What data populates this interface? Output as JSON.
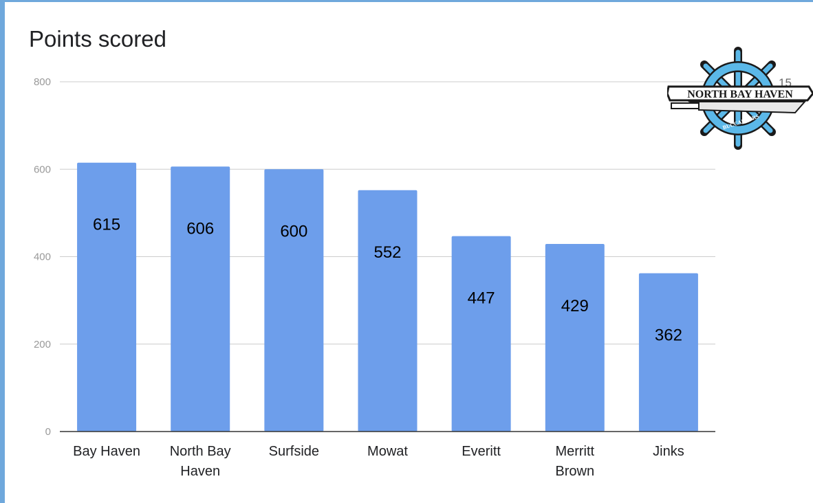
{
  "chart_data": {
    "type": "bar",
    "title": "Points scored",
    "categories": [
      [
        "Bay Haven"
      ],
      [
        "North Bay",
        "Haven"
      ],
      [
        "Surfside"
      ],
      [
        "Mowat"
      ],
      [
        "Everitt"
      ],
      [
        "Merritt",
        "Brown"
      ],
      [
        "Jinks"
      ]
    ],
    "values": [
      615,
      606,
      600,
      552,
      447,
      429,
      362
    ],
    "data_labels": [
      "615",
      "606",
      "600",
      "552",
      "447",
      "429",
      "362"
    ],
    "ylim": [
      0,
      800
    ],
    "yticks": [
      "0",
      "200",
      "400",
      "600",
      "800"
    ],
    "grid": true,
    "legend": "none",
    "bar_color": "#6d9eeb",
    "gridline_color": "#cccccc",
    "axis_color": "#333333"
  },
  "logo": {
    "text": "NORTH BAY HAVEN",
    "subtext": "BUCCANEERS",
    "number": "15",
    "colors": {
      "wheel": "#5bb8e8",
      "dark": "#1a1a1a",
      "banner": "#ffffff"
    }
  }
}
